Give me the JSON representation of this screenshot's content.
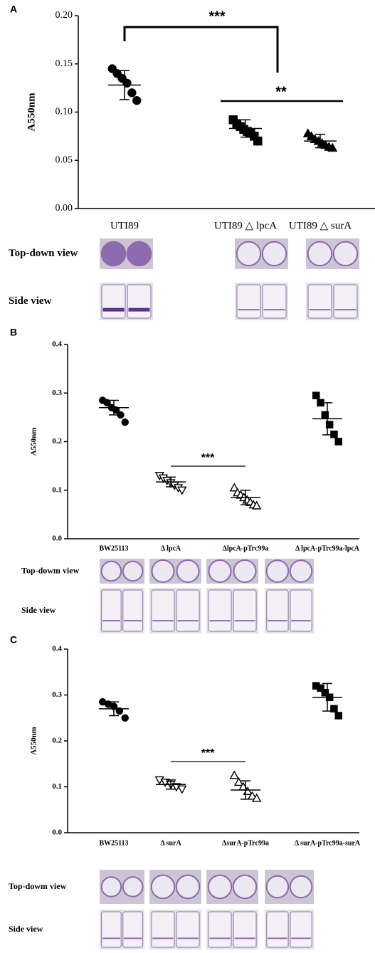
{
  "chart_data": [
    {
      "type": "dot",
      "panel": "A",
      "y_label": "A550nm",
      "categories": [
        "UTI89",
        "UTI89 △ lpcA",
        "UTI89 △ surA"
      ],
      "markers": [
        "circle",
        "square",
        "triangle"
      ],
      "points": [
        [
          0.145,
          0.14,
          0.135,
          0.13,
          0.12,
          0.112
        ],
        [
          0.092,
          0.088,
          0.085,
          0.082,
          0.08,
          0.078,
          0.075,
          0.07
        ],
        [
          0.078,
          0.075,
          0.072,
          0.07,
          0.068,
          0.066,
          0.064,
          0.063
        ]
      ],
      "means": [
        0.128,
        0.083,
        0.07
      ],
      "sd": [
        0.015,
        0.009,
        0.007
      ],
      "ylim": [
        0,
        0.2
      ],
      "yticks": [
        {
          "value": 0,
          "label": "0.00"
        },
        {
          "value": 0.05,
          "label": "0.05"
        },
        {
          "value": 0.1,
          "label": "0.10"
        },
        {
          "value": 0.15,
          "label": "0.15"
        },
        {
          "value": 0.2,
          "label": "0.20"
        }
      ],
      "annotations": [
        "***",
        "**"
      ],
      "image_rows": [
        "Top-down view",
        "Side view"
      ]
    },
    {
      "type": "dot",
      "panel": "B",
      "y_label": "A550nm",
      "categories": [
        "BW25113",
        "Δ lpcA",
        "ΔlpcA-pTrc99a",
        "Δ lpcA-pTrc99a-lpcA"
      ],
      "markers": [
        "circle",
        "triangle-down-open",
        "triangle-open",
        "square"
      ],
      "points": [
        [
          0.285,
          0.28,
          0.27,
          0.265,
          0.255,
          0.24
        ],
        [
          0.13,
          0.125,
          0.12,
          0.115,
          0.11,
          0.105,
          0.1
        ],
        [
          0.105,
          0.095,
          0.09,
          0.085,
          0.08,
          0.075,
          0.07,
          0.068
        ],
        [
          0.295,
          0.28,
          0.255,
          0.235,
          0.215,
          0.2
        ]
      ],
      "means": [
        0.27,
        0.117,
        0.085,
        0.247
      ],
      "sd": [
        0.015,
        0.01,
        0.015,
        0.033
      ],
      "ylim": [
        0,
        0.4
      ],
      "yticks": [
        {
          "value": 0,
          "label": "0.0"
        },
        {
          "value": 0.1,
          "label": "0.1"
        },
        {
          "value": 0.2,
          "label": "0.2"
        },
        {
          "value": 0.3,
          "label": "0.3"
        },
        {
          "value": 0.4,
          "label": "0.4"
        }
      ],
      "annotations": [
        "***"
      ],
      "image_rows": [
        "Top-dowm view",
        "Side view"
      ]
    },
    {
      "type": "dot",
      "panel": "C",
      "y_label": "A550nm",
      "categories": [
        "BW25113",
        "Δ surA",
        "ΔsurA-pTrc99a",
        "Δ surA-pTrc99a-surA"
      ],
      "markers": [
        "circle",
        "triangle-down-open",
        "triangle-open",
        "square"
      ],
      "points": [
        [
          0.285,
          0.28,
          0.275,
          0.265,
          0.25
        ],
        [
          0.115,
          0.11,
          0.105,
          0.1,
          0.095
        ],
        [
          0.125,
          0.11,
          0.1,
          0.09,
          0.08,
          0.075
        ],
        [
          0.32,
          0.315,
          0.305,
          0.295,
          0.27,
          0.255
        ]
      ],
      "means": [
        0.27,
        0.105,
        0.093,
        0.295
      ],
      "sd": [
        0.015,
        0.01,
        0.02,
        0.03
      ],
      "ylim": [
        0,
        0.4
      ],
      "yticks": [
        {
          "value": 0,
          "label": "0.0"
        },
        {
          "value": 0.1,
          "label": "0.1"
        },
        {
          "value": 0.2,
          "label": "0.2"
        },
        {
          "value": 0.3,
          "label": "0.3"
        },
        {
          "value": 0.4,
          "label": "0.4"
        }
      ],
      "annotations": [
        "***"
      ],
      "image_rows": [
        "Top-dowm view",
        "Side view"
      ]
    }
  ]
}
